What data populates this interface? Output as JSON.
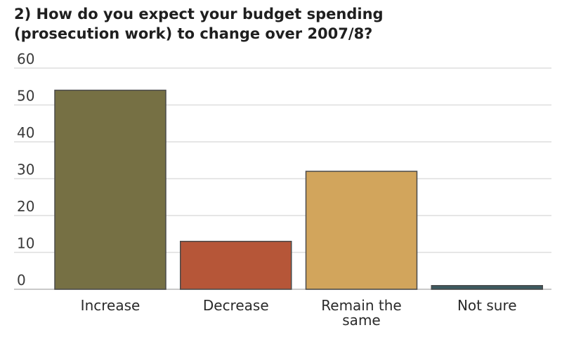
{
  "chart_data": {
    "type": "bar",
    "title_lines": [
      "2) How do you expect your budget spending",
      "(prosecution work) to change over 2007/8?"
    ],
    "categories": [
      [
        "Increase"
      ],
      [
        "Decrease"
      ],
      [
        "Remain the",
        "same"
      ],
      [
        "Not sure"
      ]
    ],
    "values": [
      54,
      13,
      32,
      1
    ],
    "colors": [
      "#767044",
      "#b65638",
      "#d2a55c",
      "#3c5a60"
    ],
    "ylim": [
      0,
      60
    ],
    "yticks": [
      "0",
      "10",
      "20",
      "30",
      "40",
      "50",
      "60"
    ],
    "grid": true,
    "legend": "none",
    "xlabel": "",
    "ylabel": ""
  }
}
